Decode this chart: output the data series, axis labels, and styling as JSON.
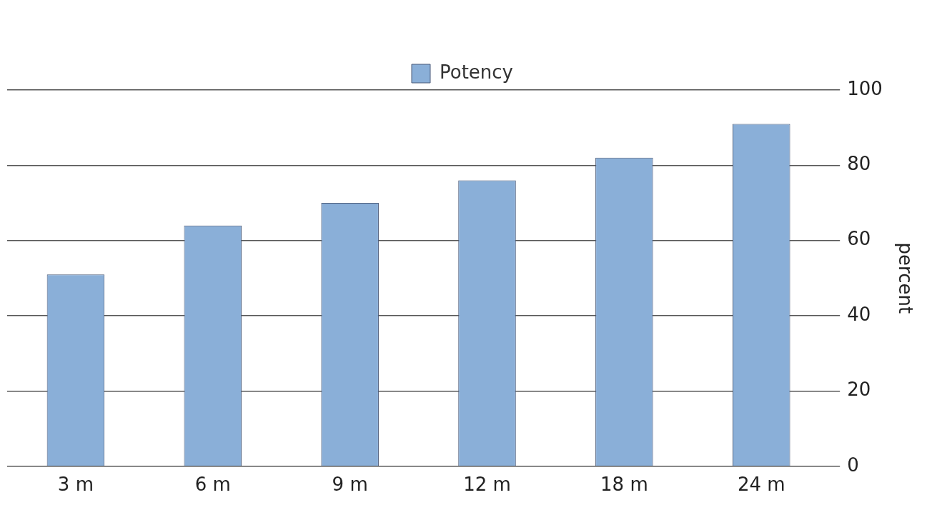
{
  "chart_data": {
    "type": "bar",
    "categories": [
      "3 m",
      "6 m",
      "9 m",
      "12 m",
      "18 m",
      "24 m"
    ],
    "series": [
      {
        "name": "Potency",
        "color": "#8aafd8",
        "values": [
          51,
          64,
          70,
          76,
          82,
          91
        ]
      }
    ],
    "ylabel": "percent",
    "ylim": [
      0,
      100
    ],
    "yticks": [
      0,
      20,
      40,
      60,
      80,
      100
    ],
    "grid": "y",
    "legend": "top"
  }
}
